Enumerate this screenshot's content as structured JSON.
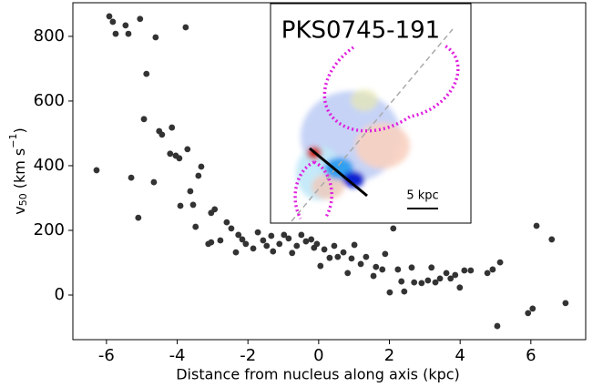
{
  "chart_data": {
    "type": "scatter",
    "xlabel": "Distance from nucleus along axis (kpc)",
    "ylabel": {
      "base": "v",
      "sub": "50",
      "unit": "(km s",
      "sup": "−1",
      "close": ")"
    },
    "xlim": [
      -6.95,
      7.55
    ],
    "ylim": [
      -138,
      904
    ],
    "xticks": [
      -6,
      -4,
      -2,
      0,
      2,
      4,
      6
    ],
    "yticks": [
      0,
      200,
      400,
      600,
      800
    ],
    "color": "#333333",
    "x": [
      -6.28,
      -5.92,
      -5.82,
      -5.74,
      -5.46,
      -5.38,
      -5.05,
      -4.61,
      -4.87,
      -4.94,
      -5.3,
      -5.1,
      -4.51,
      -4.43,
      -3.76,
      -4.15,
      -4.2,
      -4.04,
      -3.94,
      -3.71,
      -3.32,
      -3.4,
      -3.63,
      -3.91,
      -4.66,
      -3.48,
      -3.55,
      -2.94,
      -3.04,
      -3.04,
      -3.12,
      -2.78,
      -2.6,
      -2.47,
      -2.27,
      -2.16,
      -2.34,
      -2.06,
      -1.85,
      -1.72,
      -1.57,
      -1.47,
      -1.34,
      -1.29,
      -1.11,
      -0.98,
      -0.85,
      -0.75,
      -0.62,
      -0.49,
      -0.36,
      -0.21,
      -0.13,
      -0.05,
      0.05,
      0.16,
      0.31,
      0.44,
      0.54,
      0.7,
      0.82,
      0.93,
      1.01,
      1.19,
      1.34,
      1.55,
      1.62,
      1.8,
      1.88,
      2.11,
      2.01,
      2.24,
      2.34,
      2.42,
      2.63,
      2.7,
      2.91,
      3.09,
      3.19,
      3.3,
      3.43,
      3.61,
      3.73,
      3.86,
      3.99,
      4.12,
      4.3,
      4.77,
      4.92,
      5.13,
      5.05,
      5.92,
      6.05,
      6.16,
      6.59,
      6.98
    ],
    "y": [
      386,
      862,
      845,
      808,
      834,
      808,
      854,
      797,
      684,
      544,
      363,
      239,
      507,
      496,
      828,
      518,
      437,
      431,
      423,
      451,
      397,
      369,
      321,
      276,
      349,
      211,
      279,
      265,
      254,
      163,
      158,
      169,
      225,
      206,
      186,
      172,
      132,
      158,
      144,
      194,
      169,
      152,
      183,
      135,
      158,
      186,
      175,
      130,
      152,
      186,
      166,
      172,
      146,
      158,
      90,
      141,
      115,
      152,
      118,
      132,
      68,
      113,
      155,
      96,
      118,
      59,
      87,
      79,
      127,
      206,
      8,
      79,
      42,
      11,
      85,
      39,
      37,
      45,
      85,
      39,
      51,
      68,
      51,
      62,
      23,
      76,
      76,
      68,
      79,
      101,
      -96,
      -56,
      -42,
      214,
      172,
      -25
    ]
  },
  "inset": {
    "title": "PKS0745-191",
    "scale_label": "5 kpc"
  }
}
